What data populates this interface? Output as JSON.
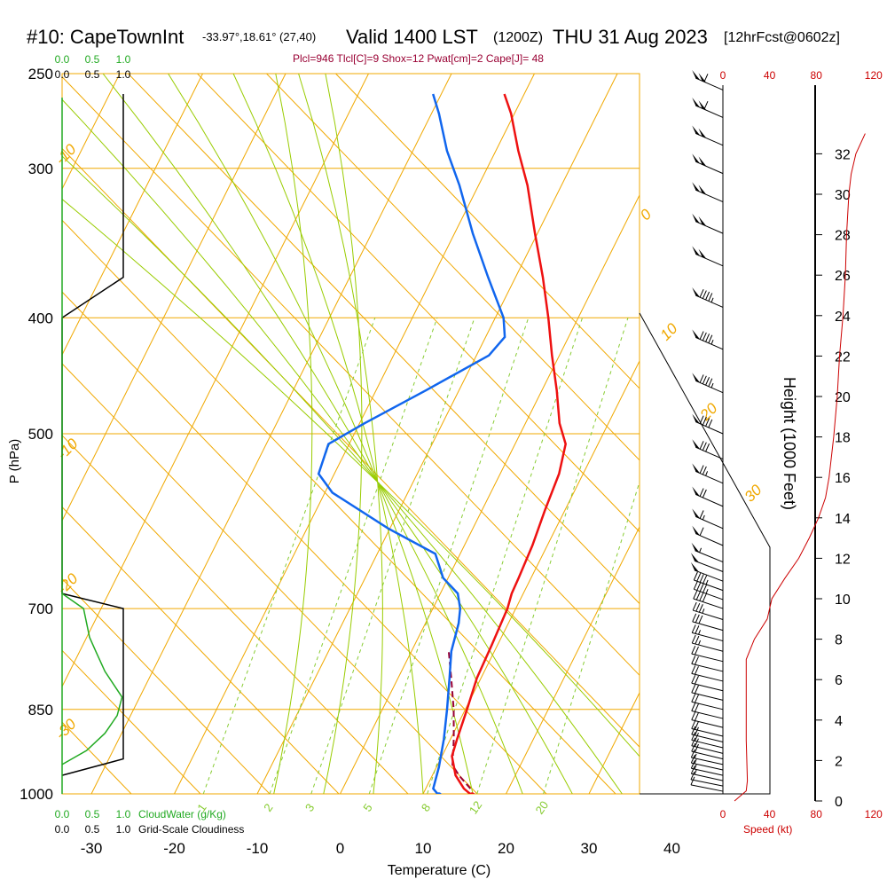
{
  "header": {
    "station": "#10: CapeTownInt",
    "coords": "-33.97°,18.61° (27,40)",
    "valid": "Valid 1400 LST",
    "utc": "(1200Z)",
    "date": "THU 31 Aug 2023",
    "forecast": "[12hrFcst@0602z]",
    "indices": "Plcl=946 Tlcl[C]=9 Shox=12 Pwat[cm]=2 Cape[J]= 48"
  },
  "colors": {
    "isotherm": "#f0a800",
    "dry_adiabat": "#f0a800",
    "moist_adiabat": "#99cc00",
    "mixing_ratio": "#88cc33",
    "temperature": "#ee1111",
    "dewpoint": "#1166ee",
    "parcel": "#990033",
    "cloudwater": "#22aa22",
    "cloudiness": "#000000",
    "wind_speed": "#cc0000",
    "indices_text": "#990033"
  },
  "chart_data": {
    "type": "line",
    "title": "#10: CapeTownInt Valid 1400 LST (1200Z) THU 31 Aug 2023 [12hrFcst@0602z]",
    "xlabel": "Temperature (C)",
    "ylabel": "P (hPa)",
    "xticks": [
      -30,
      -20,
      -10,
      0,
      10,
      20,
      30,
      40
    ],
    "yticks": [
      250,
      300,
      400,
      500,
      700,
      850,
      1000
    ],
    "xlim": [
      -34,
      36
    ],
    "ylim": [
      1000,
      250
    ],
    "isotherm_labels": [
      {
        "label": "-10"
      },
      {
        "label": "0"
      },
      {
        "label": "10"
      },
      {
        "label": "20"
      },
      {
        "label": "30"
      },
      {
        "label": "-10"
      },
      {
        "label": "-20"
      },
      {
        "label": "-30"
      }
    ],
    "mixing_ratio_labels": [
      "1",
      "2",
      "3",
      "5",
      "8",
      "12",
      "20"
    ],
    "series": [
      {
        "name": "Temperature",
        "points": [
          {
            "p": 1003,
            "t": 16.0
          },
          {
            "p": 990,
            "t": 14.6
          },
          {
            "p": 965,
            "t": 12.8
          },
          {
            "p": 930,
            "t": 11.2
          },
          {
            "p": 900,
            "t": 10.8
          },
          {
            "p": 850,
            "t": 10.2
          },
          {
            "p": 800,
            "t": 9.5
          },
          {
            "p": 750,
            "t": 9.3
          },
          {
            "p": 700,
            "t": 9.0
          },
          {
            "p": 680,
            "t": 8.6
          },
          {
            "p": 660,
            "t": 8.5
          },
          {
            "p": 620,
            "t": 8.2
          },
          {
            "p": 580,
            "t": 7.6
          },
          {
            "p": 540,
            "t": 7.1
          },
          {
            "p": 510,
            "t": 6.1
          },
          {
            "p": 490,
            "t": 4.1
          },
          {
            "p": 460,
            "t": 1.8
          },
          {
            "p": 430,
            "t": -0.9
          },
          {
            "p": 400,
            "t": -3.6
          },
          {
            "p": 370,
            "t": -6.7
          },
          {
            "p": 340,
            "t": -10.3
          },
          {
            "p": 310,
            "t": -14.1
          },
          {
            "p": 290,
            "t": -17.3
          },
          {
            "p": 270,
            "t": -20.4
          },
          {
            "p": 260,
            "t": -22.4
          }
        ]
      },
      {
        "name": "Dewpoint",
        "points": [
          {
            "p": 1003,
            "t": 12.0
          },
          {
            "p": 990,
            "t": 10.9
          },
          {
            "p": 950,
            "t": 10.3
          },
          {
            "p": 900,
            "t": 9.2
          },
          {
            "p": 850,
            "t": 7.8
          },
          {
            "p": 800,
            "t": 6.2
          },
          {
            "p": 760,
            "t": 4.8
          },
          {
            "p": 720,
            "t": 4.0
          },
          {
            "p": 700,
            "t": 3.3
          },
          {
            "p": 680,
            "t": 2.1
          },
          {
            "p": 660,
            "t": -0.6
          },
          {
            "p": 630,
            "t": -3.0
          },
          {
            "p": 600,
            "t": -10.2
          },
          {
            "p": 560,
            "t": -19.1
          },
          {
            "p": 540,
            "t": -21.9
          },
          {
            "p": 510,
            "t": -22.5
          },
          {
            "p": 490,
            "t": -19.4
          },
          {
            "p": 460,
            "t": -14.0
          },
          {
            "p": 430,
            "t": -8.5
          },
          {
            "p": 415,
            "t": -7.7
          },
          {
            "p": 400,
            "t": -9.0
          },
          {
            "p": 370,
            "t": -13.3
          },
          {
            "p": 340,
            "t": -17.8
          },
          {
            "p": 310,
            "t": -22.3
          },
          {
            "p": 290,
            "t": -25.9
          },
          {
            "p": 270,
            "t": -29.1
          },
          {
            "p": 260,
            "t": -31.0
          }
        ]
      },
      {
        "name": "Parcel",
        "points": [
          {
            "p": 990,
            "t": 15.4
          },
          {
            "p": 965,
            "t": 13.2
          },
          {
            "p": 946,
            "t": 11.8
          },
          {
            "p": 900,
            "t": 10.4
          },
          {
            "p": 850,
            "t": 8.6
          },
          {
            "p": 800,
            "t": 6.4
          },
          {
            "p": 760,
            "t": 4.5
          }
        ]
      }
    ],
    "cloudwater": {
      "name": "CloudWater (g/Kg)",
      "ticks": [
        "0.0",
        "0.5",
        "1.0"
      ],
      "points": [
        {
          "p": 680,
          "v": 0.0
        },
        {
          "p": 700,
          "v": 0.35
        },
        {
          "p": 740,
          "v": 0.45
        },
        {
          "p": 760,
          "v": 0.55
        },
        {
          "p": 790,
          "v": 0.7
        },
        {
          "p": 830,
          "v": 0.98
        },
        {
          "p": 860,
          "v": 0.9
        },
        {
          "p": 890,
          "v": 0.7
        },
        {
          "p": 920,
          "v": 0.4
        },
        {
          "p": 945,
          "v": 0.0
        }
      ]
    },
    "cloudiness": {
      "name": "Grid-Scale Cloudiness",
      "ticks": [
        "0.0",
        "0.5",
        "1.0"
      ],
      "points": [
        {
          "p": 260,
          "v": 1.0
        },
        {
          "p": 300,
          "v": 1.0
        },
        {
          "p": 370,
          "v": 1.0
        },
        {
          "p": 400,
          "v": 0.0
        },
        {
          "p": 680,
          "v": 0.0
        },
        {
          "p": 700,
          "v": 1.0
        },
        {
          "p": 935,
          "v": 1.0
        },
        {
          "p": 965,
          "v": 0.0
        }
      ]
    },
    "height": {
      "title": "Height (1000 Feet)",
      "ticks": [
        0,
        2,
        4,
        6,
        8,
        10,
        12,
        14,
        16,
        18,
        20,
        22,
        24,
        26,
        28,
        30,
        32
      ]
    },
    "wind_speed": {
      "name": "Speed (kt)",
      "ticks": [
        0,
        40,
        80,
        120
      ],
      "points": [
        {
          "h": 0,
          "s": 10
        },
        {
          "h": 0.5,
          "s": 20
        },
        {
          "h": 1,
          "s": 21
        },
        {
          "h": 3,
          "s": 20
        },
        {
          "h": 5,
          "s": 20
        },
        {
          "h": 7,
          "s": 20
        },
        {
          "h": 8,
          "s": 27
        },
        {
          "h": 9,
          "s": 38
        },
        {
          "h": 10,
          "s": 42
        },
        {
          "h": 11,
          "s": 53
        },
        {
          "h": 12,
          "s": 65
        },
        {
          "h": 13,
          "s": 74
        },
        {
          "h": 14,
          "s": 82
        },
        {
          "h": 15,
          "s": 88
        },
        {
          "h": 16,
          "s": 91
        },
        {
          "h": 18,
          "s": 95
        },
        {
          "h": 20,
          "s": 98
        },
        {
          "h": 22,
          "s": 100
        },
        {
          "h": 24,
          "s": 103
        },
        {
          "h": 26,
          "s": 105
        },
        {
          "h": 28,
          "s": 106
        },
        {
          "h": 30,
          "s": 108
        },
        {
          "h": 31,
          "s": 110
        },
        {
          "h": 32,
          "s": 114
        },
        {
          "h": 33,
          "s": 122
        }
      ]
    },
    "wind_barbs": [
      {
        "p": 995,
        "spd": 10
      },
      {
        "p": 985,
        "spd": 10
      },
      {
        "p": 975,
        "spd": 15
      },
      {
        "p": 965,
        "spd": 15
      },
      {
        "p": 955,
        "spd": 15
      },
      {
        "p": 945,
        "spd": 15
      },
      {
        "p": 935,
        "spd": 20
      },
      {
        "p": 925,
        "spd": 20
      },
      {
        "p": 915,
        "spd": 20
      },
      {
        "p": 905,
        "spd": 20
      },
      {
        "p": 895,
        "spd": 20
      },
      {
        "p": 880,
        "spd": 20
      },
      {
        "p": 865,
        "spd": 20
      },
      {
        "p": 850,
        "spd": 20
      },
      {
        "p": 835,
        "spd": 20
      },
      {
        "p": 820,
        "spd": 20
      },
      {
        "p": 805,
        "spd": 20
      },
      {
        "p": 790,
        "spd": 20
      },
      {
        "p": 775,
        "spd": 20
      },
      {
        "p": 760,
        "spd": 25
      },
      {
        "p": 745,
        "spd": 25
      },
      {
        "p": 730,
        "spd": 30
      },
      {
        "p": 715,
        "spd": 35
      },
      {
        "p": 700,
        "spd": 40
      },
      {
        "p": 688,
        "spd": 45
      },
      {
        "p": 676,
        "spd": 45
      },
      {
        "p": 664,
        "spd": 50
      },
      {
        "p": 652,
        "spd": 50
      },
      {
        "p": 640,
        "spd": 55
      },
      {
        "p": 620,
        "spd": 60
      },
      {
        "p": 600,
        "spd": 65
      },
      {
        "p": 575,
        "spd": 70
      },
      {
        "p": 550,
        "spd": 75
      },
      {
        "p": 525,
        "spd": 80
      },
      {
        "p": 500,
        "spd": 90
      },
      {
        "p": 462,
        "spd": 95
      },
      {
        "p": 425,
        "spd": 95
      },
      {
        "p": 392,
        "spd": 95
      },
      {
        "p": 362,
        "spd": 100
      },
      {
        "p": 340,
        "spd": 100
      },
      {
        "p": 320,
        "spd": 100
      },
      {
        "p": 303,
        "spd": 100
      },
      {
        "p": 287,
        "spd": 100
      },
      {
        "p": 272,
        "spd": 110
      },
      {
        "p": 258,
        "spd": 110
      }
    ]
  }
}
